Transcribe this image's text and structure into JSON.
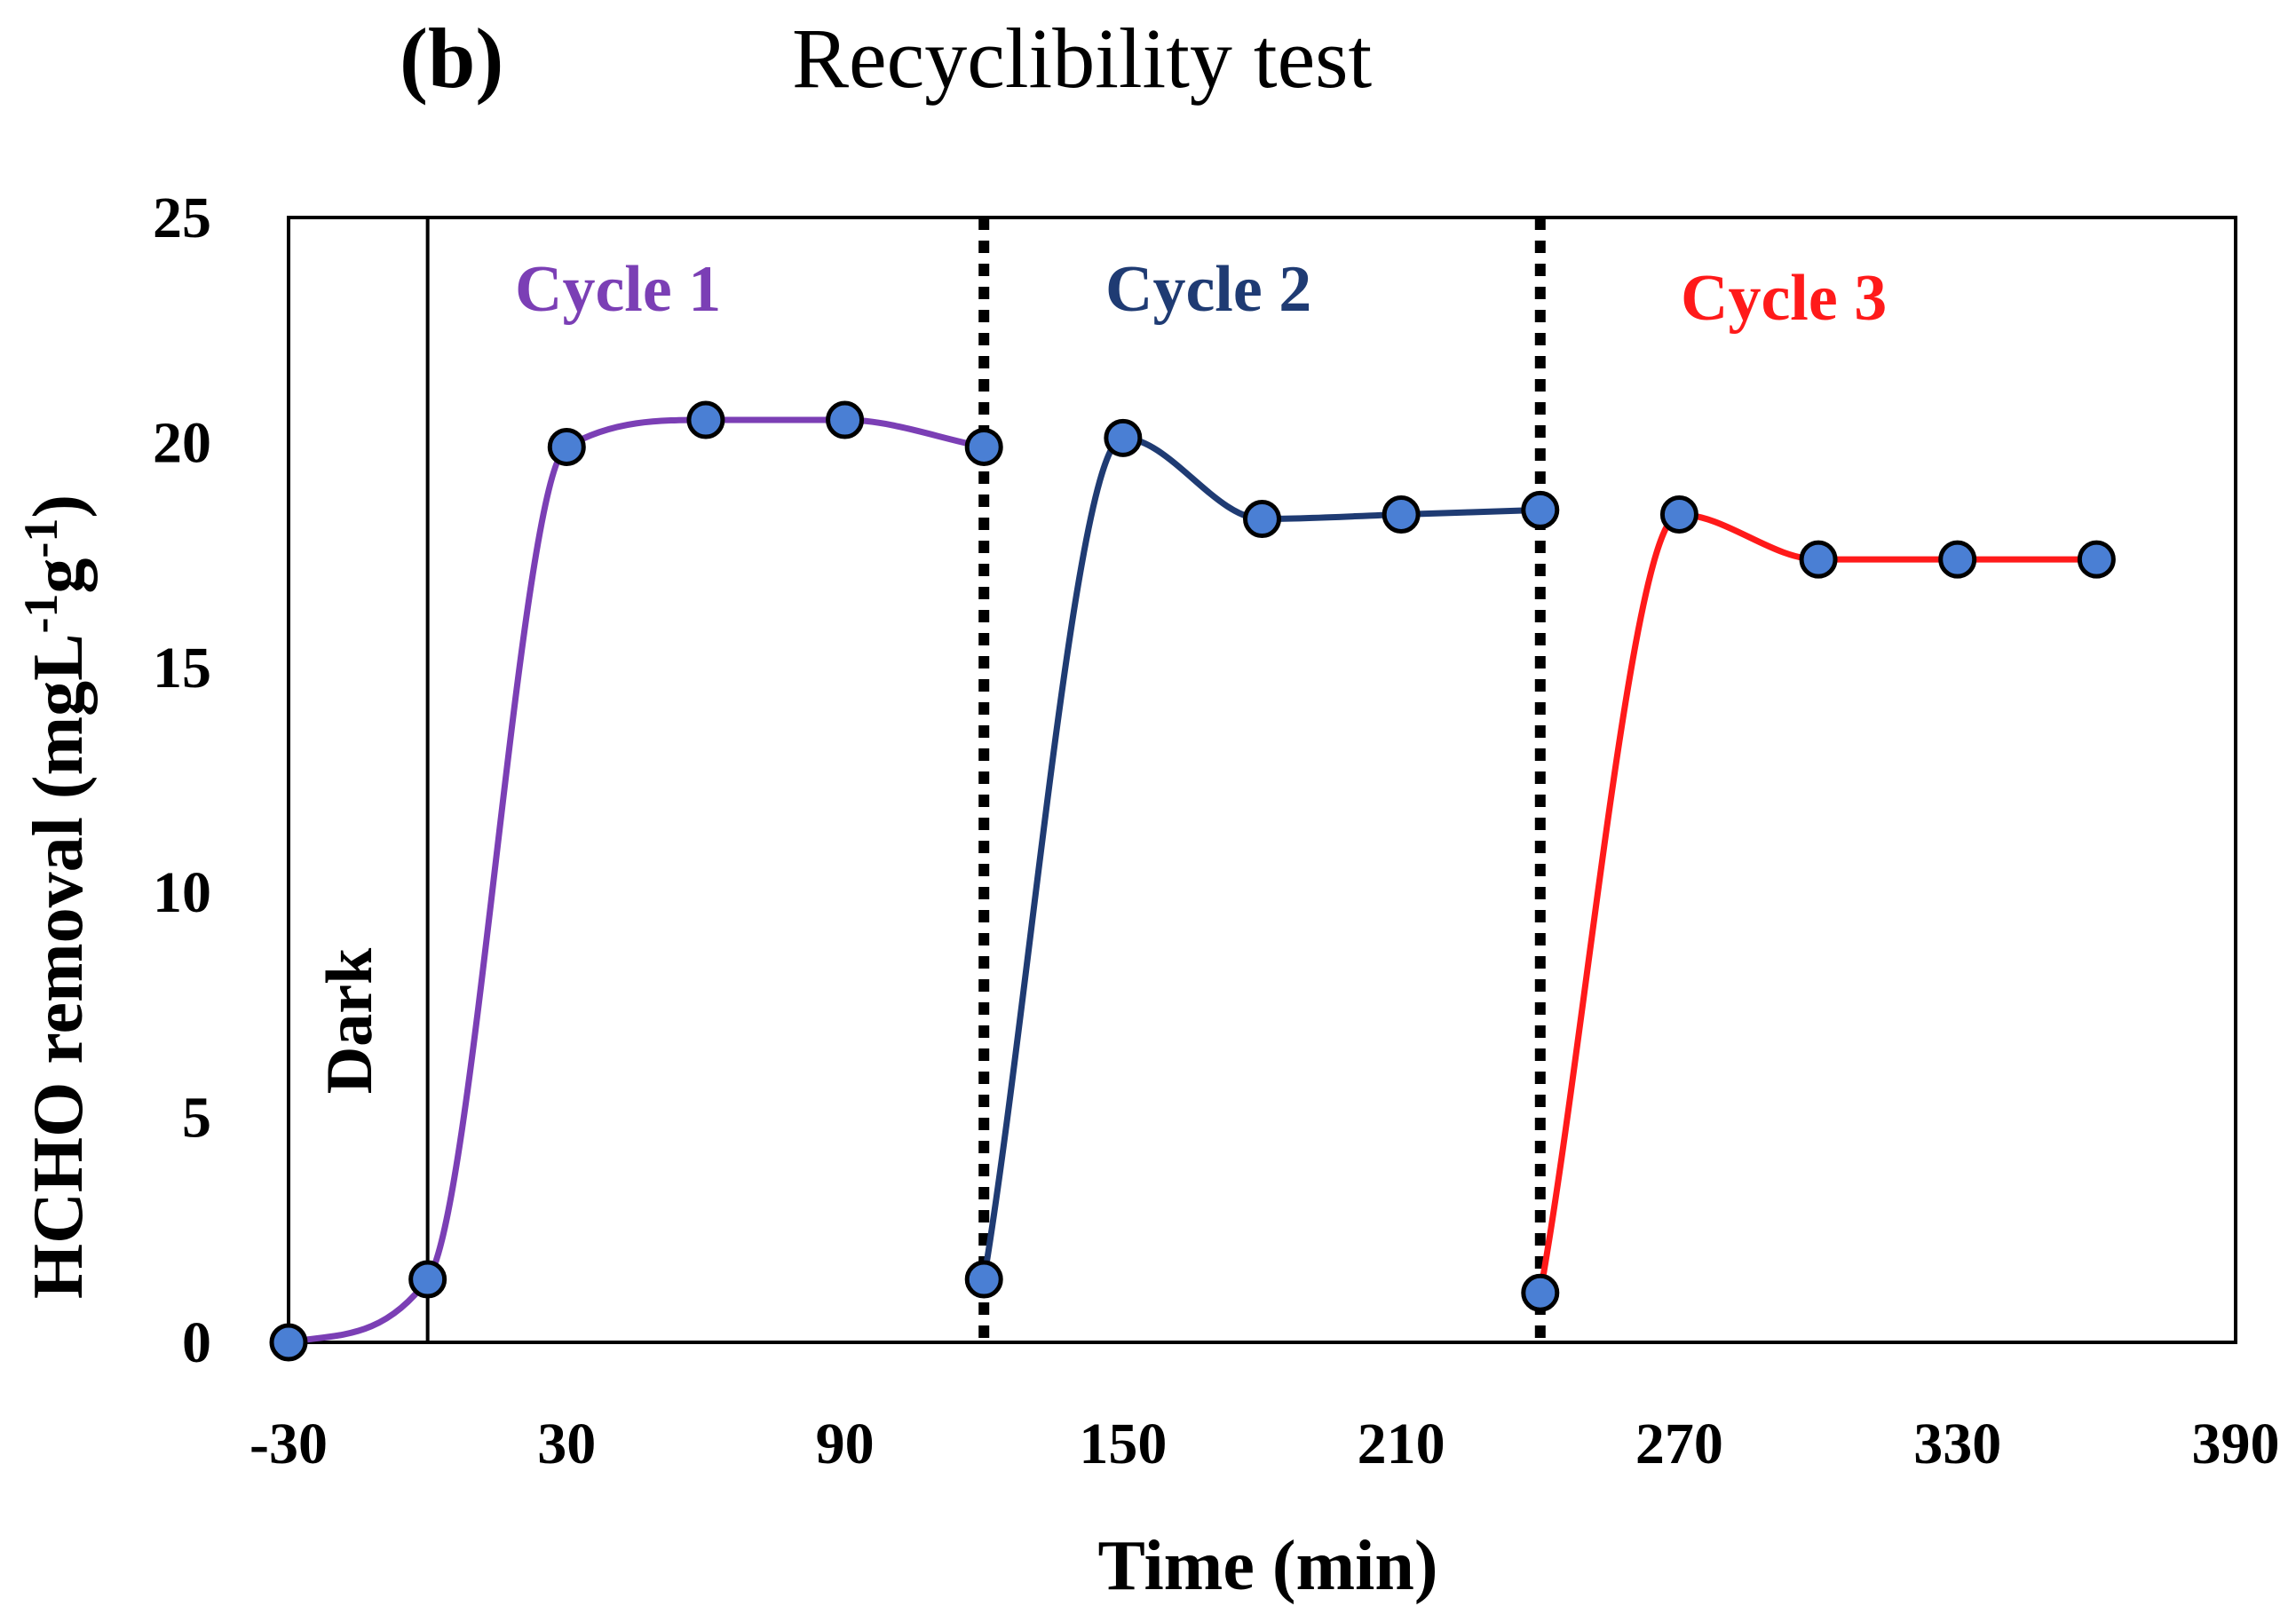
{
  "chart_data": {
    "type": "line",
    "panel_label": "(b)",
    "title": "Recyclibility  test",
    "xlabel": "Time (min)",
    "ylabel": {
      "main": "HCHO removal (mgL",
      "sup1": "-1",
      "mid": "g",
      "sup2": "-1",
      "end": ")"
    },
    "xlim": [
      -30,
      390
    ],
    "ylim": [
      0,
      25
    ],
    "xticks": [
      -30,
      30,
      90,
      150,
      210,
      270,
      330,
      390
    ],
    "yticks": [
      0,
      5,
      10,
      15,
      20,
      25
    ],
    "grid": false,
    "marker_color": "#4a7fd4",
    "dark_label": "Dark",
    "dark_boundary_x": 0,
    "cycle_boundaries_x": [
      120,
      240
    ],
    "series": [
      {
        "name": "Cycle 1",
        "color": "#7b3fb5",
        "x": [
          -30,
          0,
          30,
          60,
          90,
          120
        ],
        "y": [
          0,
          1.4,
          19.9,
          20.5,
          20.5,
          19.9
        ]
      },
      {
        "name": "Cycle 2",
        "color": "#1f3b73",
        "x": [
          120,
          150,
          180,
          210,
          240
        ],
        "y": [
          1.4,
          20.1,
          18.3,
          18.4,
          18.5
        ]
      },
      {
        "name": "Cycle 3",
        "color": "#ff1a1a",
        "x": [
          240,
          270,
          300,
          330,
          360
        ],
        "y": [
          1.1,
          18.4,
          17.4,
          17.4,
          17.4
        ]
      }
    ]
  }
}
